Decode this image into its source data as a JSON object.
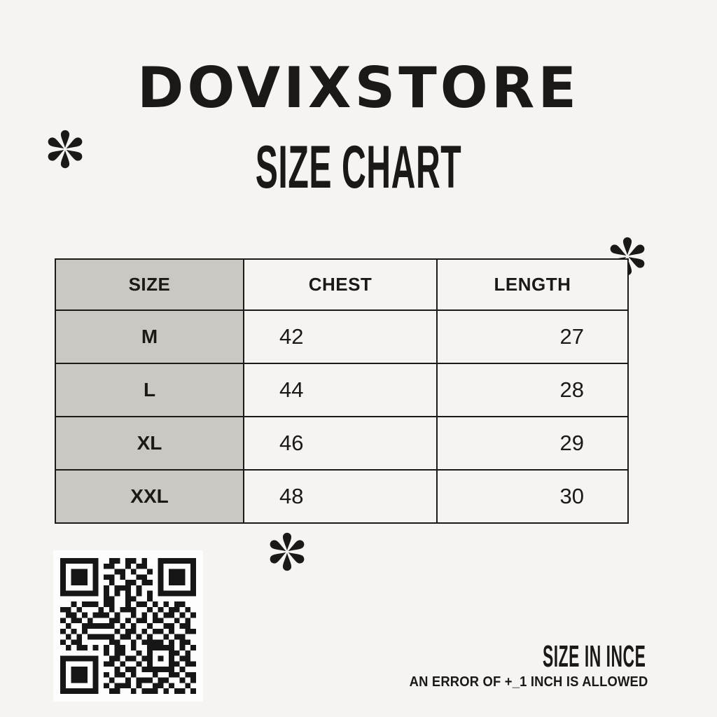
{
  "page": {
    "bg": "#f5f4f0",
    "ink": "#1a1916"
  },
  "header": {
    "brand": "DOVIXSTORE",
    "title": "SIZE CHART"
  },
  "size_table": {
    "columns": [
      "SIZE",
      "CHEST",
      "LENGTH"
    ],
    "rows": [
      {
        "size": "M",
        "chest": "42",
        "length": "27"
      },
      {
        "size": "L",
        "chest": "44",
        "length": "28"
      },
      {
        "size": "XL",
        "chest": "46",
        "length": "29"
      },
      {
        "size": "XXL",
        "chest": "48",
        "length": "30"
      }
    ],
    "size_col_bg": "#c9c8c2",
    "cell_bg": "#f5f4f0",
    "border_color": "#1c1b19"
  },
  "footer": {
    "unit_label": "SIZE IN INCE",
    "tolerance_note": "AN ERROR OF +_1 INCH IS ALLOWED"
  },
  "decorations": {
    "asterisk_icon_count": 3
  },
  "qr_code": {
    "dark": "#161616",
    "light": "#fdfdfd",
    "modules": 25,
    "matrix": [
      "1111111001101101001111111",
      "1000001011001011001000001",
      "1011101000110100101011101",
      "1011101011010011001011101",
      "1011101001001101101011101",
      "1000001010111010001000001",
      "1111111010101010101111111",
      "0000000011001100100000000",
      "0010111011001011010101100",
      "1101000101011100101011010",
      "0110101110100101010110101",
      "1011010001101011011001010",
      "0100111111010100100110110",
      "1010100000101101011010011",
      "0101011111011010100101100",
      "1011000001100101111010110",
      "0101101010110100111110101",
      "0000000010110010100011010",
      "1111111001101101101010110",
      "1000001011010010100011011",
      "1011101000101101111110100",
      "1011101010110100010011011",
      "1011101001001011101100101",
      "1000001010111010011010010",
      "1111111001100101110101101"
    ]
  }
}
